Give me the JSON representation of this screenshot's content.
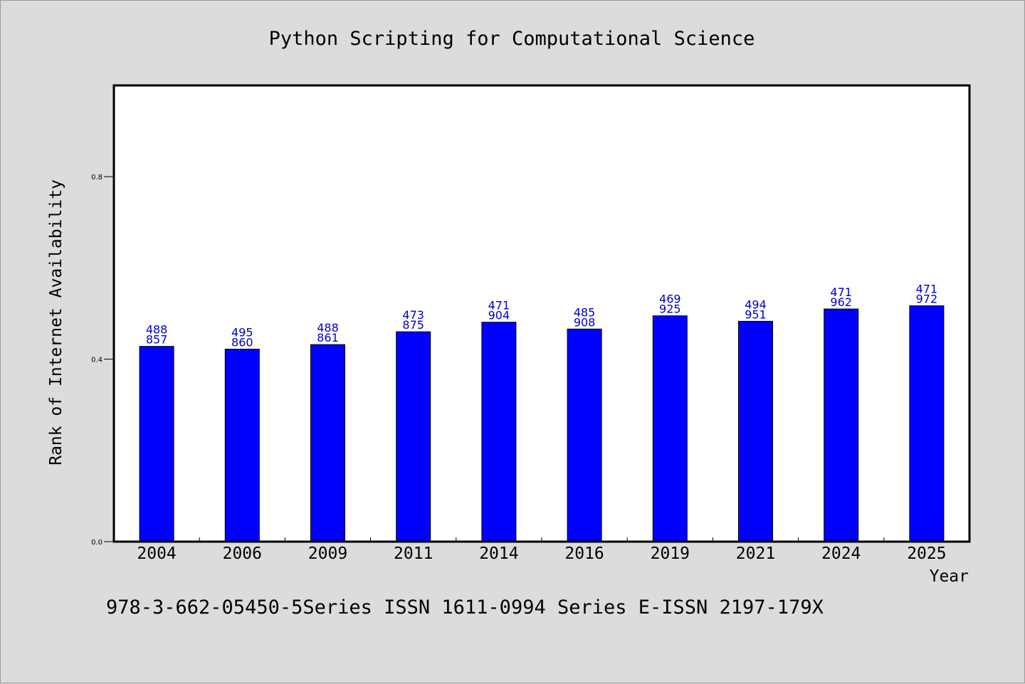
{
  "colors": {
    "background": "#dcdcdc",
    "plot_area": "#ffffff",
    "bar_fill": "#0000ff",
    "data_label": "#0000cc",
    "axes": "#000000"
  },
  "chart_data": {
    "type": "bar",
    "title": "Python Scripting for Computational Science",
    "xlabel": "Year",
    "ylabel": "Rank of Internet Availability",
    "categories": [
      "2004",
      "2006",
      "2009",
      "2011",
      "2014",
      "2016",
      "2019",
      "2021",
      "2024",
      "2025"
    ],
    "values": [
      0.428,
      0.422,
      0.432,
      0.46,
      0.481,
      0.466,
      0.495,
      0.483,
      0.51,
      0.517
    ],
    "data_labels": [
      [
        "488",
        "857"
      ],
      [
        "495",
        "860"
      ],
      [
        "488",
        "861"
      ],
      [
        "473",
        "875"
      ],
      [
        "471",
        "904"
      ],
      [
        "485",
        "908"
      ],
      [
        "469",
        "925"
      ],
      [
        "494",
        "951"
      ],
      [
        "471",
        "962"
      ],
      [
        "471",
        "972"
      ]
    ],
    "ylim": [
      0,
      1.0
    ],
    "yticks": [
      0.0,
      0.4,
      0.8
    ],
    "ytick_labels": [
      "0.0",
      "0.4",
      "0.8"
    ],
    "grid": false,
    "legend": "none"
  },
  "footer": {
    "text": "978-3-662-05450-5Series ISSN 1611-0994 Series E-ISSN 2197-179X"
  }
}
